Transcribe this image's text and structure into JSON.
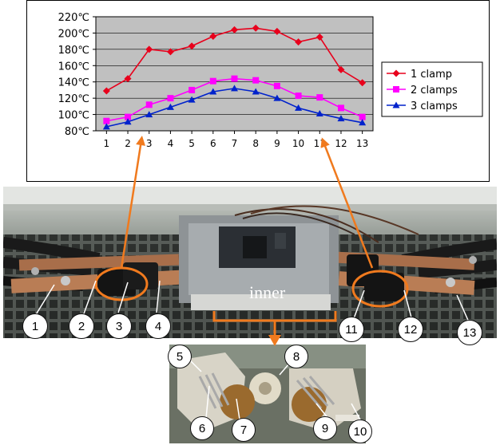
{
  "chart_data": {
    "type": "line",
    "x": [
      1,
      2,
      3,
      4,
      5,
      6,
      7,
      8,
      9,
      10,
      11,
      12,
      13
    ],
    "xticks": [
      "1",
      "2",
      "3",
      "4",
      "5",
      "6",
      "7",
      "8",
      "9",
      "10",
      "11",
      "12",
      "13"
    ],
    "yticks": [
      "80℃",
      "100℃",
      "120℃",
      "140℃",
      "160℃",
      "180℃",
      "200℃",
      "220℃"
    ],
    "ylim": [
      80,
      220
    ],
    "grid": true,
    "legend_position": "right",
    "series": [
      {
        "name": "1 clamp",
        "color": "#e8001c",
        "marker": "diamond",
        "values": [
          129,
          144,
          180,
          177,
          184,
          196,
          204,
          206,
          202,
          189,
          195,
          155,
          139
        ]
      },
      {
        "name": "2 clamps",
        "color": "#ff00ff",
        "marker": "square",
        "values": [
          92,
          97,
          112,
          120,
          130,
          141,
          144,
          142,
          135,
          123,
          121,
          108,
          97
        ]
      },
      {
        "name": "3 clamps",
        "color": "#0022cc",
        "marker": "triangle",
        "values": [
          85,
          91,
          100,
          109,
          118,
          128,
          132,
          128,
          120,
          108,
          101,
          95,
          90
        ]
      }
    ]
  },
  "photo": {
    "inner_label": "inner",
    "callouts_top": [
      "1",
      "2",
      "3",
      "4",
      "11",
      "12",
      "13"
    ],
    "callouts_bottom": [
      "5",
      "6",
      "7",
      "8",
      "9",
      "10"
    ]
  },
  "colors": {
    "arrow": "#f07a1e"
  }
}
